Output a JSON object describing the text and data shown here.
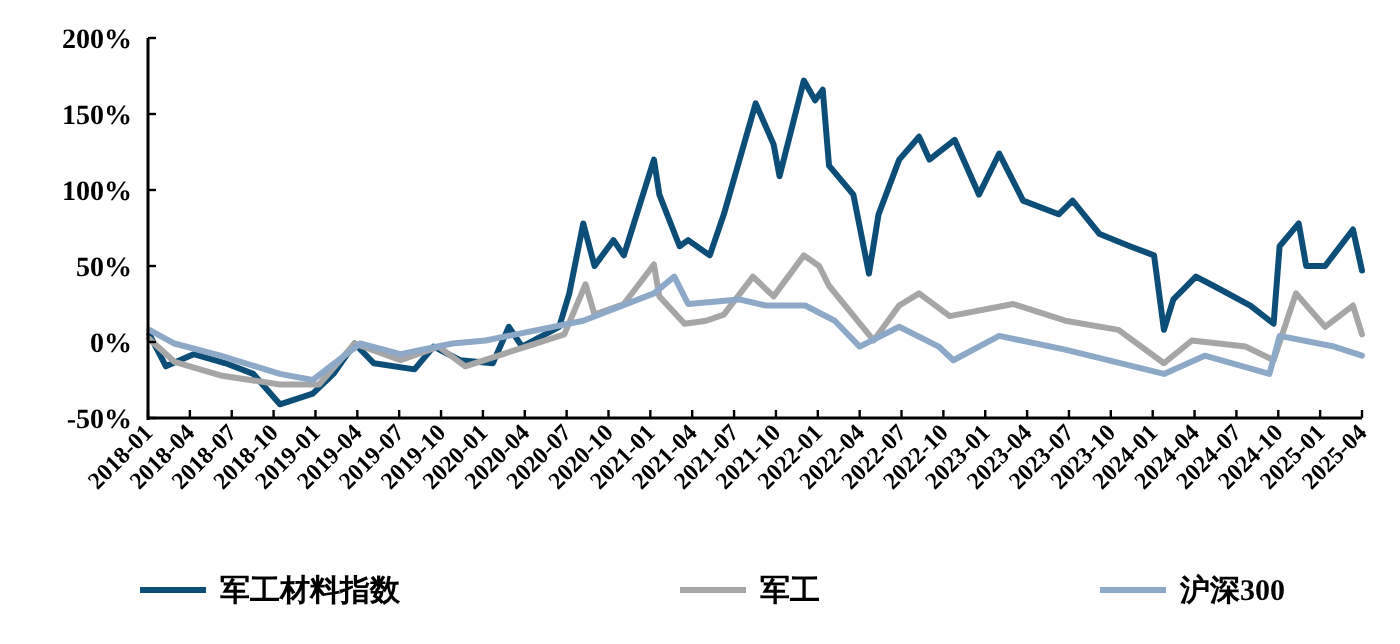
{
  "chart_data": {
    "type": "line",
    "xlim": [
      "2018-01",
      "2025-04"
    ],
    "xticks": [
      "2018-01",
      "2018-04",
      "2018-07",
      "2018-10",
      "2019-01",
      "2019-04",
      "2019-07",
      "2019-10",
      "2020-01",
      "2020-04",
      "2020-07",
      "2020-10",
      "2021-01",
      "2021-04",
      "2021-07",
      "2021-10",
      "2022-01",
      "2022-04",
      "2022-07",
      "2022-10",
      "2023-01",
      "2023-04",
      "2023-07",
      "2023-10",
      "2024-01",
      "2024-04",
      "2024-07",
      "2024-10",
      "2025-01",
      "2025-04"
    ],
    "ylim": [
      -50,
      200
    ],
    "yticks": [
      {
        "value": -50,
        "label": "-50%"
      },
      {
        "value": 0,
        "label": "0%"
      },
      {
        "value": 50,
        "label": "50%"
      },
      {
        "value": 100,
        "label": "100%"
      },
      {
        "value": 150,
        "label": "150%"
      },
      {
        "value": 200,
        "label": "200%"
      }
    ],
    "legend": "bottom",
    "grid": false,
    "marker": "none",
    "line_style": "solid",
    "series": [
      {
        "name": "军工材料指数",
        "color": "#0d4e78",
        "x": [
          "2018-01-04",
          "2018-02-09",
          "2018-04-09",
          "2018-06-18",
          "2018-08-18",
          "2018-10-15",
          "2018-12-26",
          "2019-02-09",
          "2019-03-26",
          "2019-05-07",
          "2019-08-04",
          "2019-09-15",
          "2019-11-12",
          "2020-01-23",
          "2020-02-26",
          "2020-03-26",
          "2020-06-15",
          "2020-07-07",
          "2020-08-07",
          "2020-09-01",
          "2020-10-12",
          "2020-11-04",
          "2021-01-09",
          "2021-01-21",
          "2021-03-04",
          "2021-03-23",
          "2021-05-09",
          "2021-06-09",
          "2021-08-18",
          "2021-09-26",
          "2021-10-09",
          "2021-12-01",
          "2021-12-26",
          "2022-01-12",
          "2022-01-26",
          "2022-03-18",
          "2022-04-21",
          "2022-05-12",
          "2022-06-26",
          "2022-08-09",
          "2022-09-01",
          "2022-10-26",
          "2022-12-18",
          "2023-02-01",
          "2023-03-23",
          "2023-06-09",
          "2023-07-09",
          "2023-09-07",
          "2023-11-12",
          "2024-01-04",
          "2024-01-26",
          "2024-02-15",
          "2024-04-04",
          "2024-05-12",
          "2024-08-01",
          "2024-09-21",
          "2024-10-04",
          "2024-11-15",
          "2024-12-01",
          "2025-01-12",
          "2025-03-12",
          "2025-04-01"
        ],
        "values": [
          5,
          -16,
          -8,
          -14,
          -21,
          -41,
          -34,
          -21,
          -1,
          -14,
          -18,
          -3,
          -12,
          -14,
          10,
          -3,
          10,
          32,
          78,
          50,
          67,
          57,
          120,
          97,
          63,
          67,
          57,
          84,
          157,
          130,
          109,
          172,
          159,
          166,
          116,
          97,
          45,
          84,
          120,
          135,
          120,
          133,
          97,
          124,
          93,
          84,
          93,
          71,
          63,
          57,
          8,
          28,
          43,
          37,
          24,
          12,
          63,
          78,
          50,
          50,
          74,
          47
        ]
      },
      {
        "name": "军工",
        "color": "#a6a6a6",
        "x": [
          "2018-01-04",
          "2018-02-26",
          "2018-06-07",
          "2018-10-15",
          "2019-01-09",
          "2019-03-26",
          "2019-07-04",
          "2019-09-26",
          "2019-11-23",
          "2020-04-04",
          "2020-06-26",
          "2020-08-12",
          "2020-09-01",
          "2020-11-04",
          "2021-01-09",
          "2021-01-21",
          "2021-03-15",
          "2021-05-01",
          "2021-06-09",
          "2021-08-12",
          "2021-09-26",
          "2021-12-01",
          "2022-01-04",
          "2022-01-26",
          "2022-05-01",
          "2022-06-26",
          "2022-08-09",
          "2022-10-15",
          "2023-03-01",
          "2023-06-23",
          "2023-10-18",
          "2024-01-26",
          "2024-03-26",
          "2024-07-21",
          "2024-09-21",
          "2024-11-09",
          "2025-01-12",
          "2025-03-12",
          "2025-04-01"
        ],
        "values": [
          2,
          -13,
          -22,
          -28,
          -28,
          -1,
          -12,
          -3,
          -16,
          -3,
          5,
          38,
          18,
          25,
          51,
          30,
          12,
          14,
          18,
          43,
          30,
          57,
          50,
          37,
          1,
          24,
          32,
          17,
          25,
          14,
          8,
          -14,
          1,
          -3,
          -12,
          32,
          10,
          24,
          5
        ]
      },
      {
        "name": "沪深300",
        "color": "#8ea9c8",
        "x": [
          "2018-01-04",
          "2018-02-26",
          "2018-06-07",
          "2018-10-15",
          "2018-12-26",
          "2019-04-07",
          "2019-07-04",
          "2019-10-26",
          "2020-01-07",
          "2020-08-07",
          "2021-01-09",
          "2021-02-21",
          "2021-03-23",
          "2021-07-12",
          "2021-09-09",
          "2021-12-04",
          "2022-02-07",
          "2022-04-01",
          "2022-06-26",
          "2022-09-21",
          "2022-10-23",
          "2023-02-01",
          "2023-06-23",
          "2024-01-26",
          "2024-04-23",
          "2024-09-12",
          "2024-10-04",
          "2025-02-01",
          "2025-04-01"
        ],
        "values": [
          8,
          -1,
          -9,
          -21,
          -25,
          -1,
          -8,
          -1,
          1,
          14,
          32,
          43,
          25,
          28,
          24,
          24,
          14,
          -3,
          10,
          -3,
          -12,
          4,
          -5,
          -21,
          -9,
          -21,
          4,
          -3,
          -9
        ]
      }
    ]
  }
}
